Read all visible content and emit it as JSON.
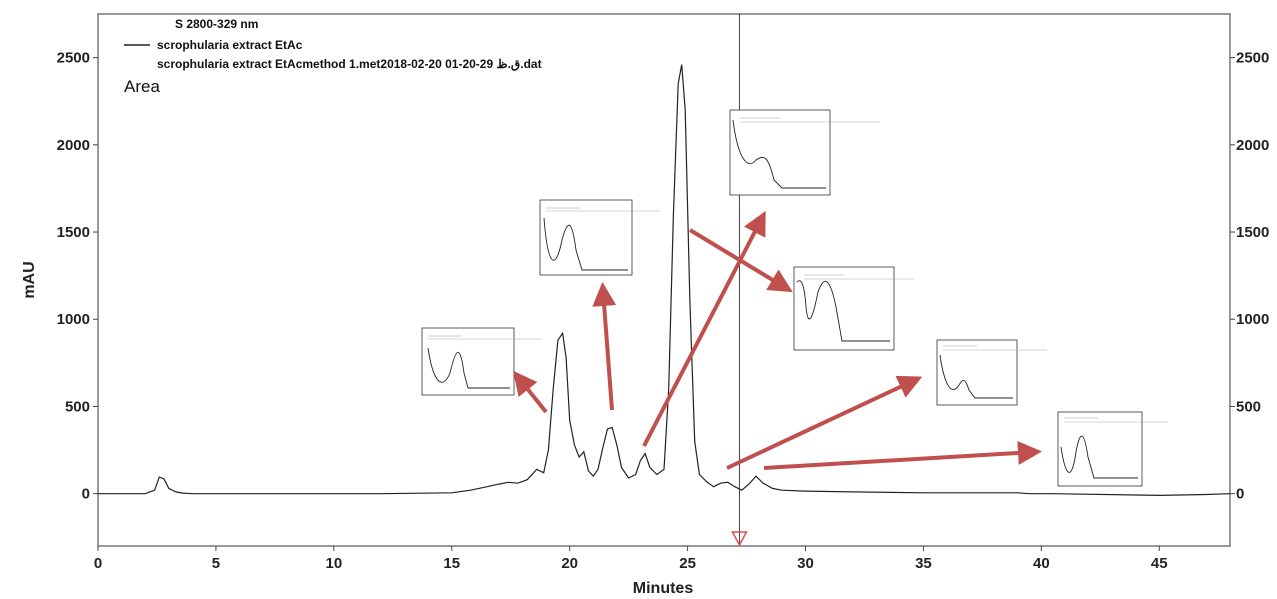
{
  "chart_data": {
    "type": "line",
    "title": "",
    "xlabel": "Minutes",
    "ylabel": "mAU",
    "xlim": [
      0,
      48
    ],
    "ylim": [
      -300,
      2750
    ],
    "x_ticks": [
      0,
      5,
      10,
      15,
      20,
      25,
      30,
      35,
      40,
      45
    ],
    "y_ticks": [
      0,
      500,
      1000,
      1500,
      2000,
      2500
    ],
    "grid": false,
    "legend": {
      "placement": "top-left",
      "header": "S 2800-329 nm",
      "entries": [
        "scrophularia extract EtAc",
        "scrophularia extract EtAcmethod 1.met2018-02-20 01-20-29 ق.ظ.dat"
      ]
    },
    "annotation": "Area",
    "marker_line_x": 27.2,
    "series": [
      {
        "name": "scrophularia extract EtAc",
        "x": [
          0.0,
          2.0,
          2.4,
          2.6,
          2.8,
          3.0,
          3.3,
          3.6,
          4.0,
          5.0,
          8.0,
          12.0,
          15.0,
          15.8,
          16.5,
          17.0,
          17.4,
          17.8,
          18.2,
          18.6,
          18.9,
          19.1,
          19.3,
          19.5,
          19.7,
          19.85,
          20.0,
          20.2,
          20.4,
          20.6,
          20.8,
          21.0,
          21.2,
          21.4,
          21.6,
          21.8,
          22.0,
          22.2,
          22.5,
          22.8,
          23.0,
          23.2,
          23.4,
          23.7,
          24.0,
          24.2,
          24.4,
          24.6,
          24.75,
          24.9,
          25.1,
          25.3,
          25.5,
          25.8,
          26.1,
          26.4,
          26.7,
          27.0,
          27.3,
          27.6,
          27.9,
          28.2,
          28.6,
          29.0,
          30.0,
          32.0,
          35.0,
          39.0,
          39.5,
          40.5,
          45.0,
          47.0,
          48.0
        ],
        "values": [
          0,
          0,
          20,
          95,
          85,
          30,
          10,
          3,
          0,
          0,
          0,
          0,
          5,
          20,
          40,
          55,
          65,
          60,
          80,
          140,
          120,
          250,
          600,
          880,
          920,
          780,
          420,
          280,
          210,
          240,
          130,
          100,
          140,
          260,
          370,
          380,
          280,
          150,
          90,
          110,
          190,
          230,
          150,
          110,
          140,
          600,
          1600,
          2350,
          2460,
          2200,
          1100,
          300,
          110,
          70,
          40,
          60,
          65,
          40,
          20,
          55,
          100,
          60,
          30,
          20,
          15,
          10,
          5,
          5,
          0,
          0,
          -10,
          -5,
          0
        ]
      }
    ]
  }
}
